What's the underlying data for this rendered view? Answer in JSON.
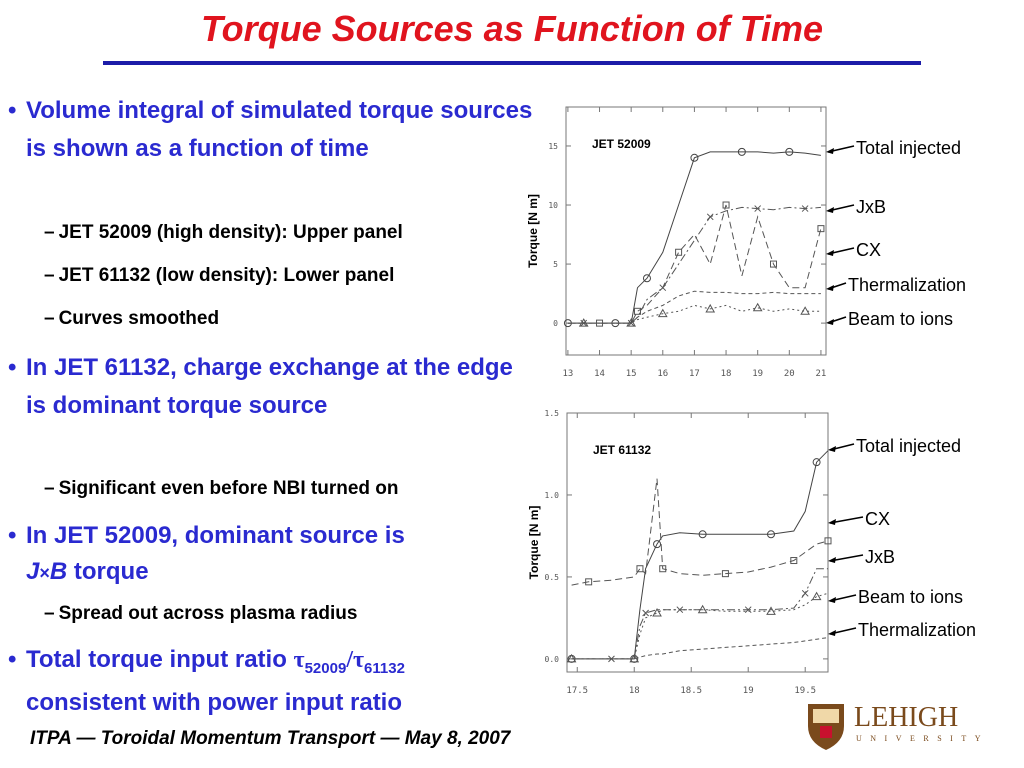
{
  "header": {
    "title": "Torque Sources as Function of Time"
  },
  "bullets": [
    {
      "text": "Volume integral of simulated torque sources is shown as a function of time",
      "sub": [
        "JET 52009 (high density): Upper panel",
        "JET 61132 (low density): Lower panel",
        "Curves smoothed"
      ]
    },
    {
      "text": "In JET 61132, charge exchange at the edge is dominant torque source",
      "sub": [
        "Significant even before NBI turned on"
      ]
    },
    {
      "parts": [
        "In JET 52009, dominant source is",
        "J",
        "×",
        "B",
        "torque"
      ],
      "sub": [
        "Spread out across plasma radius"
      ]
    },
    {
      "parts": [
        "Total torque input ratio",
        "τ",
        "52009",
        "/τ",
        "61132",
        "consistent with power input ratio"
      ]
    }
  ],
  "footer": "ITPA — Toroidal Momentum Transport — May 8, 2007",
  "logo": {
    "name": "LEHIGH",
    "subtitle": "UNIVERSITY"
  },
  "chart_data": [
    {
      "type": "line",
      "title": "JET 52009",
      "y_label": "Torque [N m]",
      "x": [
        13,
        13.5,
        14,
        14.5,
        15,
        15.2,
        15.5,
        16,
        16.5,
        17,
        17.5,
        18,
        18.5,
        19,
        19.5,
        20,
        20.5,
        21
      ],
      "xlim": [
        12.94,
        21.16
      ],
      "xticks": [
        13,
        14,
        15,
        16,
        17,
        18,
        19,
        20,
        21
      ],
      "ylim": [
        -2.7,
        18.3
      ],
      "yticks": [
        0,
        5,
        10,
        15
      ],
      "series": [
        {
          "name": "Total injected",
          "color": "#444444",
          "dash": "none",
          "marker": "circle",
          "values": [
            0,
            0,
            0,
            0,
            0,
            3,
            3.8,
            6,
            10,
            14,
            14.5,
            14.5,
            14.5,
            14.5,
            14.4,
            14.5,
            14.4,
            14.2
          ]
        },
        {
          "name": "JxB",
          "color": "#555555",
          "dash": "8 3 2 3",
          "marker": "x",
          "values": [
            0,
            0,
            0,
            0,
            0,
            0.5,
            2,
            3,
            5,
            7,
            9,
            9.5,
            9.8,
            9.7,
            9.6,
            9.8,
            9.7,
            9.8
          ]
        },
        {
          "name": "CX",
          "color": "#555555",
          "dash": "7 4",
          "marker": "square",
          "values": [
            0,
            0,
            0,
            0,
            0,
            1,
            1.5,
            3,
            6,
            7.5,
            5,
            10,
            4,
            9,
            5,
            3,
            3,
            8
          ]
        },
        {
          "name": "Thermalization",
          "color": "#555555",
          "dash": "4 3",
          "marker": "none",
          "values": [
            0,
            0,
            0,
            0,
            0,
            0.5,
            1,
            1.5,
            2.3,
            2.7,
            2.6,
            2.6,
            2.5,
            2.5,
            2.6,
            2.5,
            2.5,
            2.5
          ]
        },
        {
          "name": "Beam to ions",
          "color": "#555555",
          "dash": "2 3",
          "marker": "triangle",
          "values": [
            0,
            0,
            0,
            0,
            0,
            0.3,
            0.5,
            0.8,
            1,
            1.5,
            1.2,
            1.5,
            1,
            1.3,
            1,
            1.2,
            1,
            1
          ]
        }
      ]
    },
    {
      "type": "line",
      "title": "JET 61132",
      "y_label": "Torque [N m]",
      "x": [
        17.45,
        17.6,
        17.8,
        18.0,
        18.05,
        18.1,
        18.2,
        18.25,
        18.4,
        18.6,
        18.8,
        19.0,
        19.2,
        19.4,
        19.5,
        19.6,
        19.7
      ],
      "xlim": [
        17.41,
        19.7
      ],
      "xticks": [
        17.5,
        18.0,
        18.5,
        19.0,
        19.5
      ],
      "ylim": [
        -0.08,
        1.5
      ],
      "yticks": [
        {
          "value": 0,
          "label": "0.0"
        },
        {
          "value": 0.5,
          "label": "0.5"
        },
        {
          "value": 1,
          "label": "1.0"
        },
        {
          "value": 1.5,
          "label": "1.5"
        }
      ],
      "series": [
        {
          "name": "Total injected",
          "color": "#444444",
          "dash": "none",
          "marker": "circle",
          "values": [
            0,
            0,
            0,
            0,
            0.3,
            0.55,
            0.7,
            0.75,
            0.77,
            0.76,
            0.76,
            0.76,
            0.76,
            0.78,
            0.9,
            1.2,
            1.27
          ]
        },
        {
          "name": "CX",
          "color": "#555555",
          "dash": "7 4",
          "marker": "square",
          "values": [
            0.45,
            0.47,
            0.48,
            0.5,
            0.55,
            0.52,
            1.1,
            0.55,
            0.52,
            0.51,
            0.52,
            0.53,
            0.56,
            0.6,
            0.65,
            0.7,
            0.72
          ]
        },
        {
          "name": "JxB",
          "color": "#555555",
          "dash": "8 3 2 3",
          "marker": "x",
          "values": [
            0,
            0,
            0,
            0,
            0.2,
            0.28,
            0.3,
            0.3,
            0.3,
            0.3,
            0.3,
            0.3,
            0.3,
            0.31,
            0.4,
            0.55,
            0.55
          ]
        },
        {
          "name": "Beam to ions",
          "color": "#555555",
          "dash": "2 3",
          "marker": "triangle",
          "values": [
            0,
            0,
            0,
            0,
            0.15,
            0.25,
            0.28,
            0.3,
            0.3,
            0.3,
            0.29,
            0.29,
            0.29,
            0.3,
            0.33,
            0.38,
            0.4
          ]
        },
        {
          "name": "Thermalization",
          "color": "#555555",
          "dash": "4 3",
          "marker": "none",
          "values": [
            0,
            0,
            0,
            0,
            0.01,
            0.02,
            0.03,
            0.03,
            0.05,
            0.06,
            0.07,
            0.08,
            0.09,
            0.1,
            0.11,
            0.12,
            0.13
          ]
        }
      ]
    }
  ]
}
